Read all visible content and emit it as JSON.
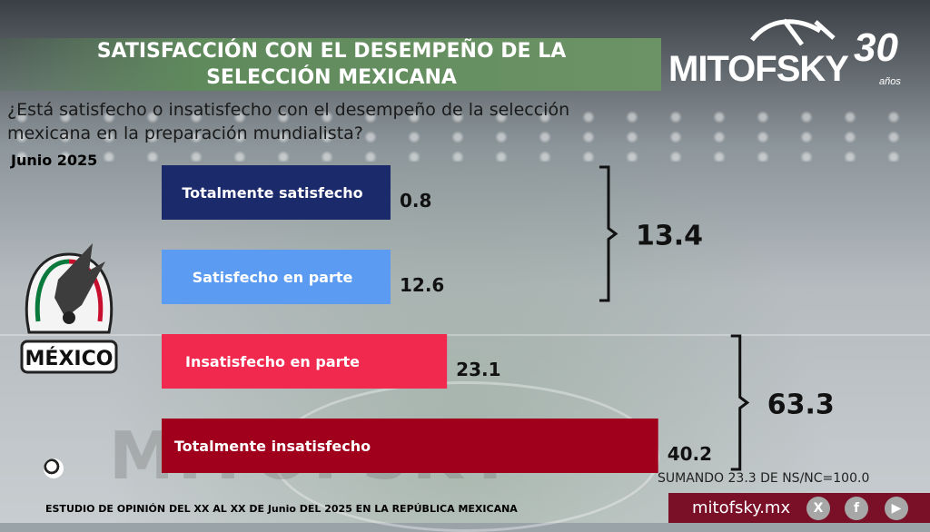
{
  "title": "SATISFACCIÓN CON EL DESEMPEÑO DE LA SELECCIÓN MEXICANA",
  "question": "¿Está satisfecho o insatisfecho con el desempeño de la selección mexicana en la preparación mundialista?",
  "date": "Junio 2025",
  "logo": {
    "text": "MITOFSKY",
    "years": "30",
    "years_label": "años"
  },
  "crest_label": "MÉXICO",
  "chart_data": {
    "type": "bar",
    "orientation": "horizontal",
    "categories": [
      "Totalmente satisfecho",
      "Satisfecho en parte",
      "Insatisfecho en parte",
      "Totalmente insatisfecho"
    ],
    "values": [
      0.8,
      12.6,
      23.1,
      40.2
    ],
    "value_labels": [
      "0.8",
      "12.6",
      "23.1",
      "40.2"
    ],
    "colors": [
      "#1b2a6b",
      "#5b9cf2",
      "#f2294e",
      "#a1001d"
    ],
    "groups": [
      {
        "label": "13.4",
        "value": 13.4,
        "members": [
          0,
          1
        ]
      },
      {
        "label": "63.3",
        "value": 63.3,
        "members": [
          2,
          3
        ]
      }
    ]
  },
  "note": "SUMANDO 23.3 DE NS/NC=100.0",
  "footer": "ESTUDIO DE OPINIÓN DEL XX AL XX DE Junio DEL 2025 EN LA REPÚBLICA MEXICANA",
  "website": "mitofsky.mx",
  "social_icons": [
    "x-icon",
    "facebook-icon",
    "youtube-icon"
  ]
}
